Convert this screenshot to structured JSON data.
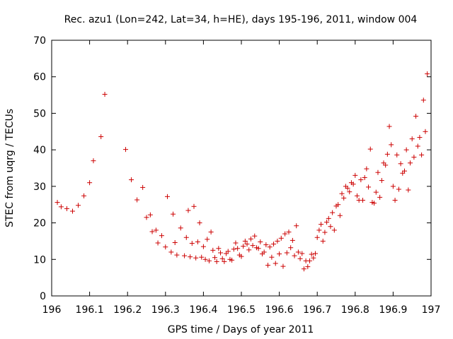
{
  "chart_data": {
    "type": "scatter",
    "title": "Rec. azu1 (Lon=242, Lat=34, h=HE), days 195-196, 2011, window 004",
    "xlabel": "GPS time / Days of year 2011",
    "ylabel": "STEC from uqrg / TECUs",
    "xlim": [
      196,
      197
    ],
    "ylim": [
      0,
      70
    ],
    "x_ticks": [
      "196",
      "196.1",
      "196.2",
      "196.3",
      "196.4",
      "196.5",
      "196.6",
      "196.7",
      "196.8",
      "196.9",
      "197"
    ],
    "y_ticks": [
      "0",
      "10",
      "20",
      "30",
      "40",
      "50",
      "60",
      "70"
    ],
    "grid": false,
    "marker": "+",
    "color": "#cc0000",
    "points": [
      [
        196.015,
        25.6
      ],
      [
        196.025,
        24.4
      ],
      [
        196.04,
        23.9
      ],
      [
        196.055,
        23.2
      ],
      [
        196.07,
        24.8
      ],
      [
        196.085,
        27.4
      ],
      [
        196.1,
        31
      ],
      [
        196.11,
        37
      ],
      [
        196.13,
        43.6
      ],
      [
        196.14,
        55.2
      ],
      [
        196.195,
        40.1
      ],
      [
        196.21,
        31.8
      ],
      [
        196.225,
        26.3
      ],
      [
        196.24,
        29.7
      ],
      [
        196.25,
        21.5
      ],
      [
        196.26,
        22.2
      ],
      [
        196.265,
        17.6
      ],
      [
        196.275,
        18
      ],
      [
        196.28,
        14.5
      ],
      [
        196.29,
        16.5
      ],
      [
        196.3,
        13.4
      ],
      [
        196.305,
        27.2
      ],
      [
        196.315,
        12
      ],
      [
        196.32,
        22.4
      ],
      [
        196.325,
        14.6
      ],
      [
        196.33,
        11.2
      ],
      [
        196.34,
        18.6
      ],
      [
        196.35,
        11
      ],
      [
        196.355,
        16
      ],
      [
        196.36,
        23.4
      ],
      [
        196.365,
        10.7
      ],
      [
        196.37,
        14.4
      ],
      [
        196.375,
        24.5
      ],
      [
        196.38,
        10.4
      ],
      [
        196.385,
        14.8
      ],
      [
        196.39,
        20
      ],
      [
        196.395,
        10.6
      ],
      [
        196.4,
        13.5
      ],
      [
        196.405,
        10
      ],
      [
        196.41,
        15.5
      ],
      [
        196.415,
        9.6
      ],
      [
        196.42,
        17.5
      ],
      [
        196.425,
        12.5
      ],
      [
        196.43,
        10.5
      ],
      [
        196.435,
        9.4
      ],
      [
        196.44,
        13
      ],
      [
        196.445,
        11.8
      ],
      [
        196.45,
        10.2
      ],
      [
        196.455,
        9.4
      ],
      [
        196.46,
        11.6
      ],
      [
        196.465,
        12.2
      ],
      [
        196.47,
        10
      ],
      [
        196.475,
        9.8
      ],
      [
        196.48,
        12.8
      ],
      [
        196.485,
        14.5
      ],
      [
        196.49,
        13
      ],
      [
        196.495,
        11.2
      ],
      [
        196.5,
        10.8
      ],
      [
        196.505,
        13.6
      ],
      [
        196.51,
        15
      ],
      [
        196.515,
        14.2
      ],
      [
        196.52,
        12.6
      ],
      [
        196.525,
        15.6
      ],
      [
        196.53,
        13.8
      ],
      [
        196.535,
        16.4
      ],
      [
        196.54,
        13.2
      ],
      [
        196.545,
        13
      ],
      [
        196.55,
        14.8
      ],
      [
        196.555,
        11.5
      ],
      [
        196.56,
        12
      ],
      [
        196.565,
        14
      ],
      [
        196.57,
        8.4
      ],
      [
        196.575,
        13.4
      ],
      [
        196.58,
        10.6
      ],
      [
        196.585,
        14.2
      ],
      [
        196.59,
        8.9
      ],
      [
        196.595,
        15
      ],
      [
        196.6,
        11.5
      ],
      [
        196.605,
        15.8
      ],
      [
        196.61,
        8.1
      ],
      [
        196.615,
        17
      ],
      [
        196.62,
        11.8
      ],
      [
        196.625,
        17.5
      ],
      [
        196.63,
        13.2
      ],
      [
        196.635,
        15.2
      ],
      [
        196.64,
        11
      ],
      [
        196.645,
        19.2
      ],
      [
        196.65,
        12
      ],
      [
        196.655,
        10.2
      ],
      [
        196.66,
        11.6
      ],
      [
        196.665,
        7.4
      ],
      [
        196.67,
        9.6
      ],
      [
        196.675,
        8
      ],
      [
        196.68,
        9.6
      ],
      [
        196.685,
        11.4
      ],
      [
        196.69,
        10.4
      ],
      [
        196.695,
        11.6
      ],
      [
        196.7,
        16
      ],
      [
        196.705,
        18
      ],
      [
        196.71,
        19.6
      ],
      [
        196.715,
        15
      ],
      [
        196.72,
        17.4
      ],
      [
        196.725,
        20.2
      ],
      [
        196.73,
        21.2
      ],
      [
        196.735,
        19
      ],
      [
        196.74,
        22.8
      ],
      [
        196.745,
        18
      ],
      [
        196.75,
        24.6
      ],
      [
        196.755,
        25
      ],
      [
        196.76,
        22
      ],
      [
        196.765,
        28
      ],
      [
        196.77,
        26.8
      ],
      [
        196.775,
        30
      ],
      [
        196.78,
        29.5
      ],
      [
        196.785,
        28.5
      ],
      [
        196.79,
        31
      ],
      [
        196.795,
        30.6
      ],
      [
        196.8,
        33
      ],
      [
        196.805,
        27.4
      ],
      [
        196.81,
        26.2
      ],
      [
        196.815,
        31.8
      ],
      [
        196.82,
        26.2
      ],
      [
        196.825,
        32.4
      ],
      [
        196.83,
        34.8
      ],
      [
        196.835,
        29.8
      ],
      [
        196.84,
        40.2
      ],
      [
        196.845,
        25.6
      ],
      [
        196.85,
        25.4
      ],
      [
        196.855,
        28.4
      ],
      [
        196.86,
        33.8
      ],
      [
        196.865,
        27
      ],
      [
        196.87,
        31.6
      ],
      [
        196.875,
        36.4
      ],
      [
        196.88,
        35.8
      ],
      [
        196.885,
        38.8
      ],
      [
        196.89,
        46.4
      ],
      [
        196.895,
        41.4
      ],
      [
        196.9,
        30
      ],
      [
        196.905,
        26.2
      ],
      [
        196.91,
        38.6
      ],
      [
        196.915,
        29.2
      ],
      [
        196.92,
        36.2
      ],
      [
        196.925,
        33.6
      ],
      [
        196.93,
        34.2
      ],
      [
        196.935,
        40
      ],
      [
        196.94,
        29
      ],
      [
        196.945,
        36.4
      ],
      [
        196.95,
        43
      ],
      [
        196.955,
        38
      ],
      [
        196.96,
        49.2
      ],
      [
        196.965,
        41
      ],
      [
        196.97,
        43.4
      ],
      [
        196.975,
        38.6
      ],
      [
        196.98,
        53.6
      ],
      [
        196.985,
        45
      ],
      [
        196.99,
        60.8
      ]
    ]
  }
}
